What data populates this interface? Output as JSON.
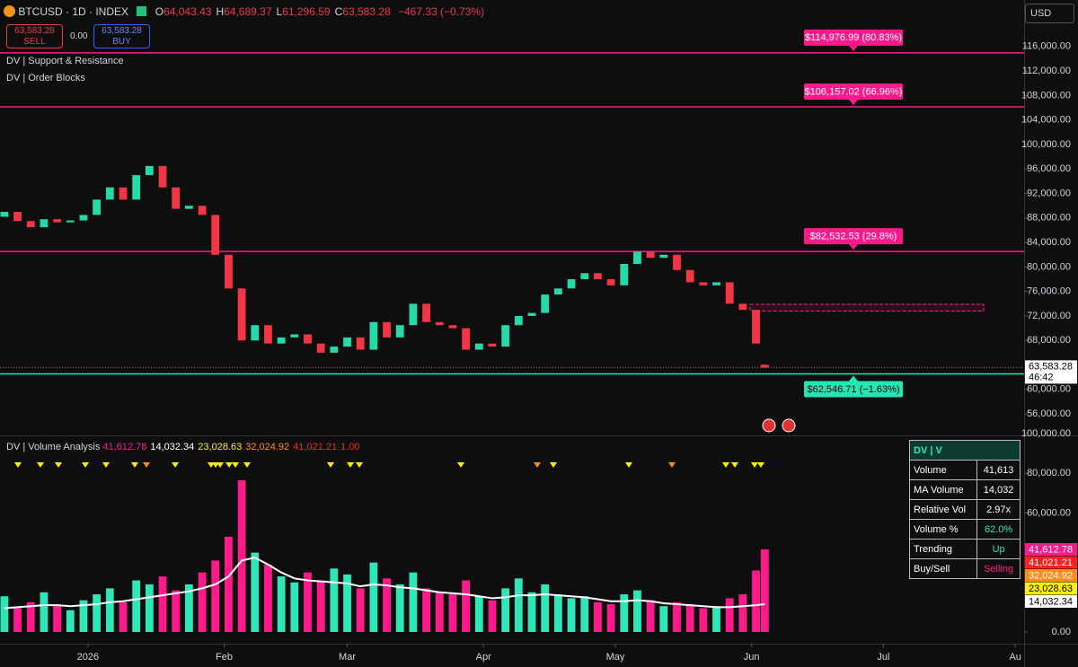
{
  "header": {
    "symbol": "BTCUSD · 1D · INDEX",
    "ohlc": [
      {
        "prefix": "O",
        "value": "64,043.43"
      },
      {
        "prefix": "H",
        "value": "64,689.37"
      },
      {
        "prefix": "L",
        "value": "61,296.59"
      },
      {
        "prefix": "C",
        "value": "63,583.28"
      }
    ],
    "change": "−467.33 (−0.73%)",
    "sell_price": "63,583.28",
    "sell": "SELL",
    "spread": "0.00",
    "buy_price": "63,583.28",
    "buy": "BUY",
    "currency": "USD",
    "indicators": [
      "DV | Support & Resistance",
      "DV | Order Blocks"
    ]
  },
  "chart_data": [
    {
      "type": "candlestick",
      "up_color": "#26d9a8",
      "down_color": "#f23645",
      "x": [
        1,
        4,
        7,
        10,
        13,
        16,
        19,
        22,
        25,
        28,
        31,
        34,
        37,
        40,
        43,
        46,
        49,
        52,
        55,
        58,
        61,
        64,
        67,
        70,
        73,
        76,
        79,
        82,
        85,
        88,
        91,
        94,
        97,
        100,
        103,
        106,
        109,
        112,
        115,
        118,
        121,
        124,
        127,
        130,
        133,
        136,
        139,
        142,
        145,
        148,
        151,
        154,
        157,
        160,
        163,
        166,
        169,
        172,
        174
      ],
      "open": [
        88200,
        89000,
        87500,
        86500,
        87800,
        87300,
        87600,
        88500,
        91000,
        93000,
        91000,
        95000,
        96500,
        93000,
        89500,
        90000,
        88500,
        82000,
        76500,
        68000,
        70500,
        67500,
        68500,
        69000,
        67500,
        66000,
        67000,
        68500,
        66500,
        71000,
        68500,
        70500,
        74000,
        71000,
        70500,
        70000,
        66500,
        67500,
        67000,
        70500,
        72000,
        72500,
        75500,
        76500,
        78000,
        79000,
        78000,
        77000,
        80500,
        82500,
        81500,
        82000,
        79500,
        77500,
        77000,
        77500,
        74000,
        73000,
        64043.43
      ],
      "close": [
        89000,
        87500,
        86500,
        87800,
        87300,
        87600,
        88500,
        91000,
        93000,
        91000,
        95000,
        96500,
        93000,
        89500,
        90000,
        88500,
        82000,
        76500,
        68000,
        70500,
        67500,
        68500,
        69000,
        67500,
        66000,
        67000,
        68500,
        66500,
        71000,
        68500,
        70500,
        74000,
        71000,
        70500,
        70000,
        66500,
        67500,
        67000,
        70500,
        72000,
        72500,
        75500,
        76500,
        78000,
        79000,
        78000,
        77000,
        80500,
        82500,
        81500,
        82000,
        79500,
        77500,
        77000,
        77500,
        74000,
        73000,
        67500,
        63583.28
      ],
      "xlim": [
        0,
        233
      ],
      "xticks": [
        {
          "value": 20,
          "label": "2026"
        },
        {
          "value": 51,
          "label": "Feb"
        },
        {
          "value": 79,
          "label": "Mar"
        },
        {
          "value": 110,
          "label": "Apr"
        },
        {
          "value": 140,
          "label": "May"
        },
        {
          "value": 171,
          "label": "Jun"
        },
        {
          "value": 201,
          "label": "Jul"
        },
        {
          "value": 231,
          "label": "Au"
        }
      ],
      "ylim": [
        52500,
        123600
      ],
      "yticks": [
        {
          "value": 116000,
          "label": "116,000.00"
        },
        {
          "value": 112000,
          "label": "112,000.00"
        },
        {
          "value": 108000,
          "label": "108,000.00"
        },
        {
          "value": 104000,
          "label": "104,000.00"
        },
        {
          "value": 100000,
          "label": "100,000.00"
        },
        {
          "value": 96000,
          "label": "96,000.00"
        },
        {
          "value": 92000,
          "label": "92,000.00"
        },
        {
          "value": 88000,
          "label": "88,000.00"
        },
        {
          "value": 84000,
          "label": "84,000.00"
        },
        {
          "value": 80000,
          "label": "80,000.00"
        },
        {
          "value": 76000,
          "label": "76,000.00"
        },
        {
          "value": 72000,
          "label": "72,000.00"
        },
        {
          "value": 68000,
          "label": "68,000.00"
        },
        {
          "value": 60000,
          "label": "60,000.00"
        },
        {
          "value": 56000,
          "label": "56,000.00"
        }
      ],
      "levels": [
        {
          "value": 114976.99,
          "label": "$114,976.99 (80.83%)",
          "color": "#ff1a8c"
        },
        {
          "value": 106157.02,
          "label": "$106,157.02 (66.96%)",
          "color": "#ff1a8c"
        },
        {
          "value": 82532.53,
          "label": "$82,532.53 (29.8%)",
          "color": "#ff1a8c"
        },
        {
          "value": 62546.71,
          "label": "$62,546.71 (−1.63%)",
          "color": "#22e6b4"
        }
      ],
      "last_price": {
        "value": 63583.28,
        "label": "63,583.28"
      },
      "countdown": "46:42",
      "order_block": [
        72800,
        73900
      ]
    },
    {
      "type": "volume",
      "title": "DV | Volume Analysis",
      "legend": [
        {
          "value": 41612.78,
          "label": "41,612.78",
          "color": "#ff1a8c"
        },
        {
          "value": 14032.34,
          "label": "14,032.34",
          "color": "#ffffff"
        },
        {
          "value": 23028.63,
          "label": "23,028.63",
          "color": "#ffee00"
        },
        {
          "value": 32024.92,
          "label": "32,024.92",
          "color": "#ff8c1a"
        },
        {
          "value": 41021.21,
          "label": "41,021.21",
          "color": "#ff2020"
        },
        {
          "value": 1,
          "label": "1.00",
          "color": "#ff2020"
        }
      ],
      "values": [
        18000,
        12000,
        15000,
        20000,
        14000,
        11000,
        16000,
        19000,
        22000,
        15000,
        26000,
        24000,
        28000,
        21000,
        24000,
        30000,
        36000,
        48000,
        76500,
        40000,
        34000,
        28000,
        25000,
        30000,
        26000,
        32000,
        29000,
        22000,
        35000,
        27000,
        24000,
        30000,
        22000,
        20000,
        19000,
        26000,
        18000,
        16000,
        22000,
        27000,
        20000,
        24000,
        19000,
        17000,
        18000,
        15000,
        14000,
        19000,
        21000,
        16000,
        13000,
        15000,
        14000,
        12000,
        13000,
        17000,
        19000,
        31000,
        41612.78
      ],
      "ma": {
        "color": "#ffffff",
        "values": [
          12000,
          12500,
          13000,
          13500,
          13500,
          13000,
          13500,
          14000,
          15000,
          15500,
          16500,
          17500,
          18500,
          19500,
          20500,
          22000,
          24000,
          28000,
          36000,
          37500,
          34000,
          30000,
          27000,
          26000,
          25500,
          25000,
          24500,
          23000,
          24000,
          23500,
          22500,
          22000,
          21000,
          20000,
          19500,
          19000,
          18000,
          17000,
          17500,
          18500,
          18500,
          19000,
          18500,
          18000,
          17500,
          16500,
          15500,
          15500,
          16000,
          15500,
          14500,
          14000,
          13500,
          13000,
          12500,
          12500,
          13000,
          13500,
          14032.34
        ]
      },
      "up_color": "#2ee6b8",
      "down_color": "#ff1a8c",
      "ylim": [
        0,
        100000
      ],
      "yticks": [
        {
          "value": 100000,
          "label": "100,000.00"
        },
        {
          "value": 80000,
          "label": "80,000.00"
        },
        {
          "value": 60000,
          "label": "60,000.00"
        },
        {
          "value": 0,
          "label": "0.00"
        }
      ],
      "right_labels": [
        0,
        4,
        3,
        2,
        1
      ],
      "table": {
        "title": "DV | V",
        "rows": [
          [
            "Volume",
            "41,613"
          ],
          [
            "MA Volume",
            "14,032"
          ],
          [
            "Relative Vol",
            "2.97x"
          ],
          [
            "Volume %",
            "62.0%"
          ],
          [
            "Trending",
            "Up"
          ],
          [
            "Buy/Sell",
            "Selling"
          ]
        ]
      }
    }
  ]
}
